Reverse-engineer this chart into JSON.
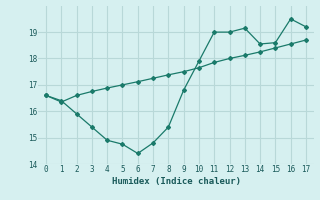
{
  "xlabel": "Humidex (Indice chaleur)",
  "bg_color": "#d6f0f0",
  "grid_color": "#b8d8d8",
  "line_color": "#1a7a6a",
  "line1_x": [
    0,
    1,
    2,
    3,
    4,
    5,
    6,
    7,
    8,
    9,
    10,
    11,
    12,
    13,
    14,
    15,
    16,
    17
  ],
  "line1_y": [
    16.6,
    16.4,
    15.9,
    15.4,
    14.9,
    14.75,
    14.4,
    14.8,
    15.4,
    16.8,
    17.9,
    19.0,
    19.0,
    19.15,
    18.55,
    18.6,
    19.5,
    19.2
  ],
  "line2_x": [
    0,
    1,
    2,
    3,
    4,
    5,
    6,
    7,
    8,
    9,
    10,
    11,
    12,
    13,
    14,
    15,
    16,
    17
  ],
  "line2_y": [
    16.6,
    16.35,
    16.6,
    16.75,
    16.88,
    17.0,
    17.12,
    17.25,
    17.38,
    17.5,
    17.65,
    17.85,
    18.0,
    18.12,
    18.25,
    18.4,
    18.55,
    18.7
  ],
  "xlim": [
    -0.5,
    17.5
  ],
  "ylim": [
    14.0,
    19.99
  ],
  "xticks": [
    0,
    1,
    2,
    3,
    4,
    5,
    6,
    7,
    8,
    9,
    10,
    11,
    12,
    13,
    14,
    15,
    16,
    17
  ],
  "yticks": [
    14,
    15,
    16,
    17,
    18,
    19
  ]
}
